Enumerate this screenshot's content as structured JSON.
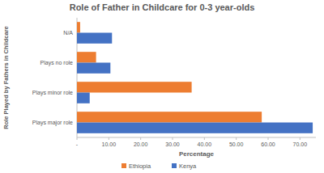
{
  "chart_data": {
    "type": "bar",
    "orientation": "horizontal",
    "title": "Role of Father in Childcare for 0-3 year-olds",
    "x_label": "Percentage",
    "y_label": "Role Played by Fathers in Childcare",
    "categories": [
      "N/A",
      "Plays no role",
      "Plays minor role",
      "Plays major role"
    ],
    "series": [
      {
        "name": "Ethiopia",
        "color": "#ed7d31",
        "values": [
          1,
          6,
          36,
          58
        ]
      },
      {
        "name": "Kenya",
        "color": "#4472c4",
        "values": [
          11,
          10.5,
          4,
          74
        ]
      }
    ],
    "xlim": [
      0,
      75
    ],
    "xticks": [
      {
        "value": 0,
        "label": "-"
      },
      {
        "value": 10,
        "label": "10.00"
      },
      {
        "value": 20,
        "label": "20.00"
      },
      {
        "value": 30,
        "label": "30.00"
      },
      {
        "value": 40,
        "label": "40.00"
      },
      {
        "value": 50,
        "label": "50.00"
      },
      {
        "value": 60,
        "label": "60.00"
      },
      {
        "value": 70,
        "label": "70.00"
      }
    ],
    "grid": false,
    "legend": "bottom"
  }
}
